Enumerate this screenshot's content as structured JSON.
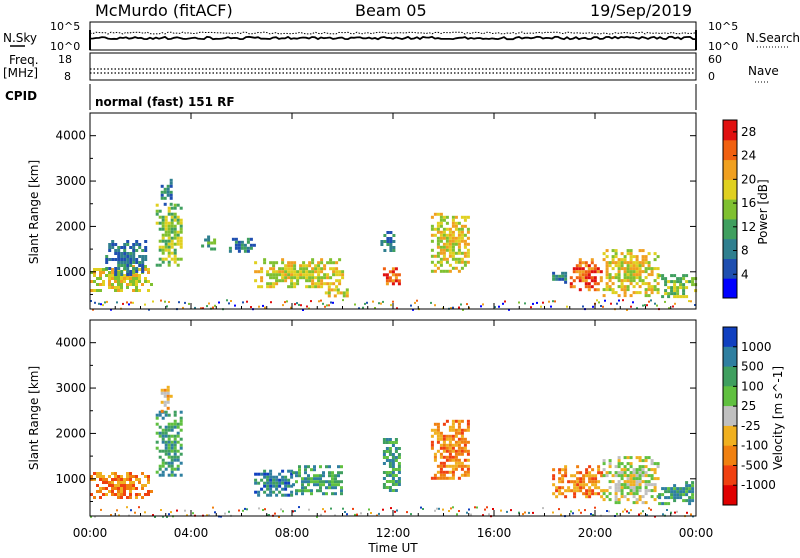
{
  "header": {
    "title": "McMurdo (fitACF)",
    "beam": "Beam 05",
    "date": "19/Sep/2019"
  },
  "noise_panel": {
    "left_label": "N.Sky",
    "right_label": "N.Search",
    "ticks_left": [
      "10^5",
      "10^0"
    ],
    "ticks_right": [
      "10^5",
      "10^0"
    ]
  },
  "freq_panel": {
    "left_label_line1": "Freq.",
    "left_label_line2": "[MHz]",
    "ticks_left": [
      "18",
      "8"
    ],
    "right_label": "Nave",
    "ticks_right": [
      "60",
      "0"
    ]
  },
  "cpid": {
    "label": "CPID",
    "text": "normal (fast) 151 RF"
  },
  "chart_data": [
    {
      "type": "heatmap",
      "title": "Power",
      "ylabel": "Slant Range [km]",
      "xlabel": "Time UT",
      "x_ticks": [
        "00:00",
        "04:00",
        "08:00",
        "12:00",
        "16:00",
        "20:00",
        "00:00"
      ],
      "y_ticks": [
        1000,
        2000,
        3000,
        4000
      ],
      "ylim": [
        180,
        4500
      ],
      "colorbar": {
        "label": "Power [dB]",
        "ticks": [
          4,
          8,
          12,
          16,
          20,
          24,
          28
        ],
        "range": [
          0,
          30
        ],
        "colors": [
          "#0000ff",
          "#1f4fb0",
          "#2f7f8f",
          "#3f9f5f",
          "#7fc030",
          "#e0d020",
          "#f0a020",
          "#f06010",
          "#e01010"
        ]
      },
      "echo_regions": [
        {
          "t0": 0.0,
          "t1": 2.4,
          "r0": 600,
          "r1": 1150,
          "level": 20
        },
        {
          "t0": 0.6,
          "t1": 2.2,
          "r0": 950,
          "r1": 1700,
          "level": 8
        },
        {
          "t0": 2.6,
          "t1": 3.6,
          "r0": 1100,
          "r1": 2500,
          "level": 16
        },
        {
          "t0": 2.8,
          "t1": 3.2,
          "r0": 2500,
          "r1": 3050,
          "level": 8
        },
        {
          "t0": 4.4,
          "t1": 4.9,
          "r0": 1500,
          "r1": 1800,
          "level": 12
        },
        {
          "t0": 5.5,
          "t1": 6.5,
          "r0": 1450,
          "r1": 1750,
          "level": 8
        },
        {
          "t0": 6.5,
          "t1": 10.0,
          "r0": 650,
          "r1": 1300,
          "level": 18
        },
        {
          "t0": 9.3,
          "t1": 10.2,
          "r0": 450,
          "r1": 700,
          "level": 20
        },
        {
          "t0": 11.6,
          "t1": 12.2,
          "r0": 750,
          "r1": 1100,
          "level": 26
        },
        {
          "t0": 11.5,
          "t1": 12.0,
          "r0": 1500,
          "r1": 1900,
          "level": 8
        },
        {
          "t0": 13.5,
          "t1": 15.0,
          "r0": 1000,
          "r1": 2300,
          "level": 18
        },
        {
          "t0": 18.3,
          "t1": 18.8,
          "r0": 800,
          "r1": 1000,
          "level": 8
        },
        {
          "t0": 19.0,
          "t1": 20.3,
          "r0": 600,
          "r1": 1300,
          "level": 26
        },
        {
          "t0": 20.3,
          "t1": 22.5,
          "r0": 500,
          "r1": 1500,
          "level": 20
        },
        {
          "t0": 22.5,
          "t1": 24.0,
          "r0": 450,
          "r1": 950,
          "level": 14
        }
      ]
    },
    {
      "type": "heatmap",
      "title": "Velocity",
      "ylabel": "Slant Range [km]",
      "xlabel": "Time UT",
      "x_ticks": [
        "00:00",
        "04:00",
        "08:00",
        "12:00",
        "16:00",
        "20:00",
        "00:00"
      ],
      "y_ticks": [
        1000,
        2000,
        3000,
        4000
      ],
      "ylim": [
        180,
        4500
      ],
      "colorbar": {
        "label": "Velocity [m s^-1]",
        "ticks": [
          "1000",
          "500",
          "100",
          "25",
          "-25",
          "-100",
          "-500",
          "-1000"
        ],
        "colors": [
          "#1040c0",
          "#2f7fa0",
          "#3f9f5f",
          "#60c040",
          "#c0c0c0",
          "#f0b020",
          "#f08010",
          "#f04010",
          "#e00000"
        ]
      },
      "echo_regions": [
        {
          "t0": 0.0,
          "t1": 2.4,
          "r0": 600,
          "r1": 1150,
          "level": "-500"
        },
        {
          "t0": 2.6,
          "t1": 3.6,
          "r0": 1100,
          "r1": 2500,
          "level": "100"
        },
        {
          "t0": 2.8,
          "t1": 3.2,
          "r0": 2500,
          "r1": 3050,
          "level": "-100"
        },
        {
          "t0": 6.5,
          "t1": 8.0,
          "r0": 650,
          "r1": 1200,
          "level": "500"
        },
        {
          "t0": 8.0,
          "t1": 10.0,
          "r0": 700,
          "r1": 1300,
          "level": "100"
        },
        {
          "t0": 11.6,
          "t1": 12.2,
          "r0": 750,
          "r1": 1900,
          "level": "100"
        },
        {
          "t0": 13.5,
          "t1": 15.0,
          "r0": 1000,
          "r1": 2300,
          "level": "-500"
        },
        {
          "t0": 18.3,
          "t1": 20.3,
          "r0": 600,
          "r1": 1300,
          "level": "-500"
        },
        {
          "t0": 20.3,
          "t1": 22.5,
          "r0": 500,
          "r1": 1500,
          "level": "-25"
        },
        {
          "t0": 22.5,
          "t1": 24.0,
          "r0": 450,
          "r1": 950,
          "level": "100"
        }
      ]
    }
  ],
  "x_axis": {
    "label": "Time UT",
    "ticks": [
      "00:00",
      "04:00",
      "08:00",
      "12:00",
      "16:00",
      "20:00",
      "00:00"
    ]
  }
}
